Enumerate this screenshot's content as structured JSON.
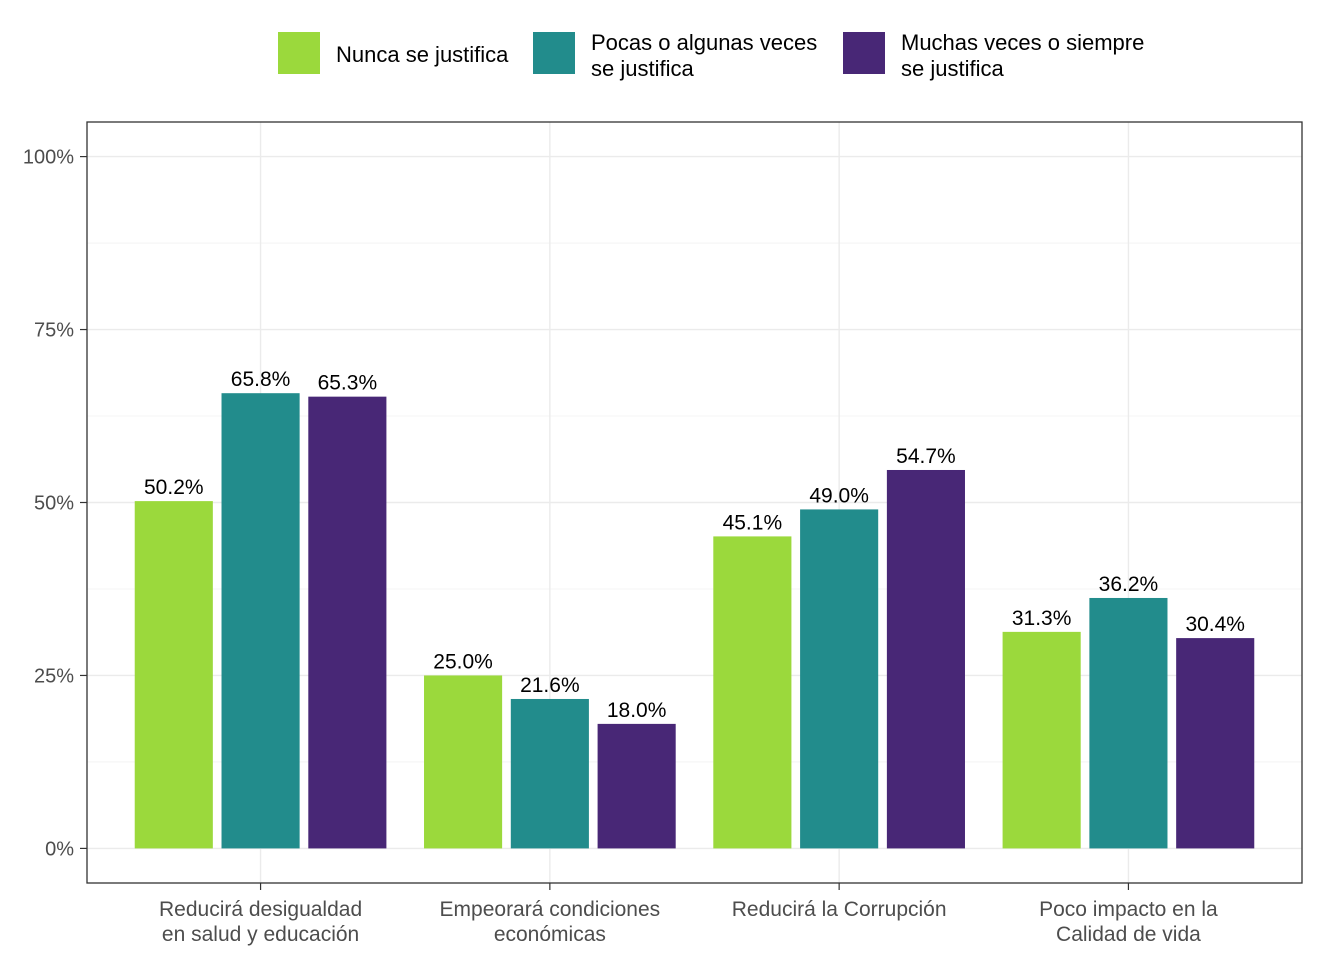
{
  "chart_data": {
    "type": "bar",
    "categories": [
      [
        "Reducirá desigualdad",
        "en salud y educación"
      ],
      [
        "Empeorará condiciones",
        "económicas"
      ],
      [
        "Reducirá la Corrupción"
      ],
      [
        "Poco impacto en la",
        "Calidad de vida"
      ]
    ],
    "series": [
      {
        "name": [
          "Nunca se justifica"
        ],
        "color": "#9bd93c",
        "values": [
          50.2,
          25.0,
          45.1,
          31.3
        ],
        "labels": [
          "50.2%",
          "25.0%",
          "45.1%",
          "31.3%"
        ]
      },
      {
        "name": [
          "Pocas o algunas veces",
          "se justifica"
        ],
        "color": "#228c8c",
        "values": [
          65.8,
          21.6,
          49.0,
          36.2
        ],
        "labels": [
          "65.8%",
          "21.6%",
          "49.0%",
          "36.2%"
        ]
      },
      {
        "name": [
          "Muchas veces o siempre",
          "se justifica"
        ],
        "color": "#482776",
        "values": [
          65.3,
          18.0,
          54.7,
          30.4
        ],
        "labels": [
          "65.3%",
          "18.0%",
          "54.7%",
          "30.4%"
        ]
      }
    ],
    "y_ticks": [
      {
        "value": 0,
        "label": "0%"
      },
      {
        "value": 25,
        "label": "25%"
      },
      {
        "value": 50,
        "label": "50%"
      },
      {
        "value": 75,
        "label": "75%"
      },
      {
        "value": 100,
        "label": "100%"
      }
    ],
    "ylim": [
      -5,
      105
    ],
    "grid": true,
    "legend_position": "top",
    "title": "",
    "xlabel": "",
    "ylabel": ""
  }
}
